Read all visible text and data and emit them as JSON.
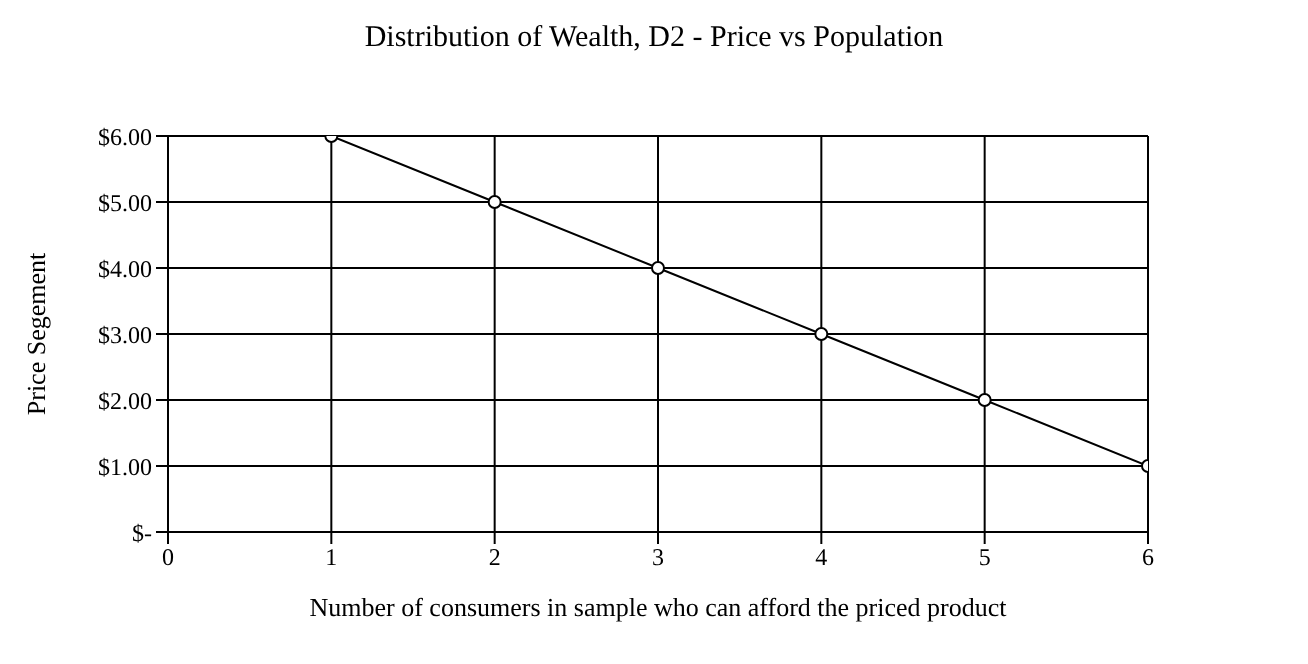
{
  "chart_data": {
    "type": "line",
    "title": "Distribution of Wealth, D2 - Price vs Population",
    "xlabel": "Number of consumers in sample who can afford the priced product",
    "ylabel": "Price Segement",
    "x": [
      1,
      2,
      3,
      4,
      5,
      6
    ],
    "series": [
      {
        "color": "#000000",
        "values": [
          6,
          5,
          4,
          3,
          2,
          1
        ]
      }
    ],
    "xlim": [
      0,
      6
    ],
    "xticks": [
      0,
      1,
      2,
      3,
      4,
      5,
      6
    ],
    "ylim": [
      0,
      6
    ],
    "yticks": [
      {
        "value": 0,
        "label": "$-"
      },
      {
        "value": 1,
        "label": "$1.00"
      },
      {
        "value": 2,
        "label": "$2.00"
      },
      {
        "value": 3,
        "label": "$3.00"
      },
      {
        "value": 4,
        "label": "$4.00"
      },
      {
        "value": 5,
        "label": "$5.00"
      },
      {
        "value": 6,
        "label": "$6.00"
      }
    ],
    "grid": true,
    "marker": "circle",
    "line_style": "solid"
  }
}
